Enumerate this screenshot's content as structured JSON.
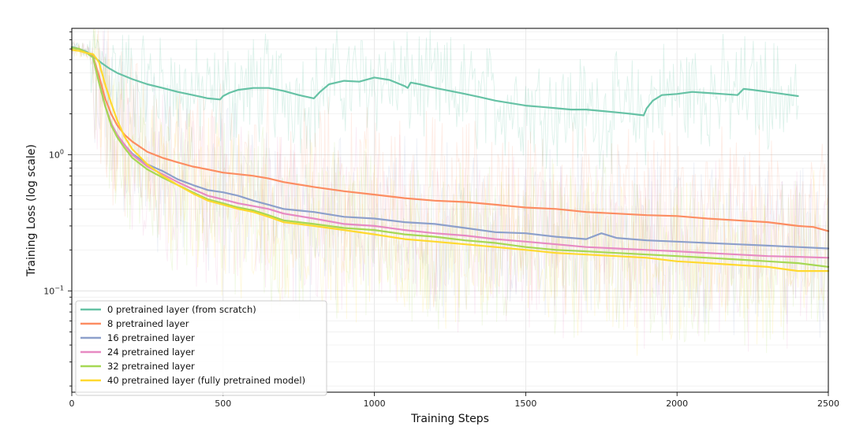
{
  "chart_data": {
    "type": "line",
    "title": "",
    "xlabel": "Training Steps",
    "ylabel": "Training Loss (log scale)",
    "x_scale": "linear",
    "y_scale": "log",
    "xlim": [
      0,
      2500
    ],
    "ylim": [
      0.018,
      8.5
    ],
    "x_ticks": [
      0,
      500,
      1000,
      1500,
      2000,
      2500
    ],
    "x_tick_labels": [
      "0",
      "500",
      "1000",
      "1500",
      "2000",
      "2500"
    ],
    "y_ticks": [
      1,
      0.1
    ],
    "y_tick_labels": [
      "10^0",
      "10^−1"
    ],
    "grid": true,
    "legend_position": "lower-left",
    "series": [
      {
        "name": "0 pretrained layer (from scratch)",
        "color": "#66c2a5",
        "x": [
          0,
          25,
          50,
          75,
          100,
          125,
          150,
          200,
          250,
          300,
          350,
          400,
          450,
          490,
          500,
          520,
          550,
          600,
          650,
          700,
          750,
          800,
          820,
          850,
          900,
          950,
          1000,
          1050,
          1100,
          1110,
          1120,
          1150,
          1200,
          1250,
          1300,
          1350,
          1400,
          1450,
          1500,
          1550,
          1600,
          1650,
          1700,
          1750,
          1800,
          1850,
          1890,
          1900,
          1920,
          1950,
          2000,
          2050,
          2100,
          2150,
          2200,
          2220,
          2250,
          2300,
          2350,
          2400
        ],
        "y": [
          6.2,
          6.0,
          5.7,
          5.2,
          4.7,
          4.3,
          4.0,
          3.6,
          3.3,
          3.1,
          2.9,
          2.75,
          2.6,
          2.55,
          2.7,
          2.85,
          3.0,
          3.1,
          3.1,
          2.95,
          2.75,
          2.6,
          2.9,
          3.3,
          3.5,
          3.45,
          3.7,
          3.55,
          3.2,
          3.1,
          3.4,
          3.3,
          3.1,
          2.95,
          2.8,
          2.65,
          2.5,
          2.4,
          2.3,
          2.25,
          2.2,
          2.15,
          2.15,
          2.1,
          2.05,
          2.0,
          1.95,
          2.2,
          2.5,
          2.75,
          2.8,
          2.9,
          2.85,
          2.8,
          2.75,
          3.05,
          3.0,
          2.9,
          2.8,
          2.7
        ]
      },
      {
        "name": "8 pretrained layer",
        "color": "#fc8d62",
        "x": [
          0,
          25,
          50,
          70,
          90,
          110,
          130,
          150,
          175,
          200,
          250,
          300,
          350,
          400,
          450,
          500,
          550,
          600,
          650,
          700,
          800,
          900,
          1000,
          1100,
          1200,
          1300,
          1400,
          1500,
          1600,
          1700,
          1800,
          1900,
          2000,
          2100,
          2200,
          2300,
          2400,
          2450,
          2500
        ],
        "y": [
          6.1,
          6.0,
          5.6,
          5.3,
          3.8,
          2.6,
          2.0,
          1.65,
          1.4,
          1.25,
          1.05,
          0.95,
          0.88,
          0.82,
          0.78,
          0.74,
          0.72,
          0.7,
          0.67,
          0.63,
          0.58,
          0.54,
          0.51,
          0.48,
          0.46,
          0.45,
          0.43,
          0.41,
          0.4,
          0.38,
          0.37,
          0.36,
          0.355,
          0.34,
          0.33,
          0.32,
          0.3,
          0.295,
          0.275
        ]
      },
      {
        "name": "16 pretrained layer",
        "color": "#8da0cb",
        "x": [
          0,
          25,
          50,
          70,
          90,
          110,
          130,
          150,
          175,
          200,
          250,
          300,
          350,
          400,
          450,
          500,
          550,
          600,
          650,
          700,
          800,
          900,
          1000,
          1100,
          1200,
          1300,
          1400,
          1500,
          1600,
          1700,
          1750,
          1800,
          1900,
          2000,
          2100,
          2200,
          2300,
          2400,
          2500
        ],
        "y": [
          6.1,
          6.0,
          5.6,
          5.2,
          3.4,
          2.3,
          1.7,
          1.4,
          1.18,
          1.02,
          0.85,
          0.76,
          0.66,
          0.6,
          0.55,
          0.53,
          0.5,
          0.46,
          0.43,
          0.4,
          0.38,
          0.35,
          0.34,
          0.32,
          0.31,
          0.29,
          0.27,
          0.265,
          0.25,
          0.24,
          0.265,
          0.245,
          0.235,
          0.23,
          0.225,
          0.22,
          0.215,
          0.21,
          0.205
        ]
      },
      {
        "name": "24 pretrained layer",
        "color": "#e78ac3",
        "x": [
          0,
          25,
          50,
          70,
          90,
          110,
          130,
          150,
          175,
          200,
          250,
          300,
          350,
          400,
          450,
          500,
          550,
          600,
          650,
          700,
          800,
          900,
          1000,
          1100,
          1200,
          1300,
          1400,
          1500,
          1600,
          1700,
          1800,
          1900,
          2000,
          2100,
          2200,
          2300,
          2400,
          2500
        ],
        "y": [
          6.1,
          6.0,
          5.6,
          5.2,
          3.4,
          2.3,
          1.7,
          1.4,
          1.18,
          1.0,
          0.82,
          0.72,
          0.63,
          0.56,
          0.5,
          0.47,
          0.44,
          0.42,
          0.4,
          0.37,
          0.34,
          0.31,
          0.3,
          0.28,
          0.265,
          0.255,
          0.24,
          0.23,
          0.22,
          0.21,
          0.205,
          0.2,
          0.195,
          0.19,
          0.185,
          0.18,
          0.178,
          0.175
        ]
      },
      {
        "name": "32 pretrained layer",
        "color": "#a6d854",
        "x": [
          0,
          25,
          50,
          70,
          90,
          110,
          130,
          150,
          175,
          200,
          250,
          300,
          350,
          400,
          450,
          500,
          550,
          600,
          650,
          700,
          800,
          900,
          1000,
          1100,
          1200,
          1300,
          1400,
          1500,
          1600,
          1700,
          1800,
          1900,
          2000,
          2100,
          2200,
          2300,
          2400,
          2500
        ],
        "y": [
          6.1,
          6.0,
          5.6,
          5.2,
          3.4,
          2.3,
          1.65,
          1.35,
          1.12,
          0.95,
          0.78,
          0.68,
          0.6,
          0.53,
          0.47,
          0.44,
          0.41,
          0.39,
          0.36,
          0.33,
          0.31,
          0.29,
          0.28,
          0.26,
          0.25,
          0.235,
          0.225,
          0.21,
          0.2,
          0.195,
          0.19,
          0.185,
          0.18,
          0.175,
          0.17,
          0.165,
          0.16,
          0.15
        ]
      },
      {
        "name": "40 pretrained layer (fully pretrained model)",
        "color": "#ffd92f",
        "x": [
          0,
          25,
          50,
          70,
          90,
          110,
          130,
          150,
          175,
          200,
          250,
          300,
          350,
          400,
          450,
          500,
          550,
          600,
          650,
          700,
          800,
          900,
          1000,
          1100,
          1200,
          1300,
          1400,
          1500,
          1600,
          1700,
          1800,
          1900,
          2000,
          2100,
          2200,
          2300,
          2400,
          2500
        ],
        "y": [
          5.9,
          5.8,
          5.6,
          5.5,
          4.8,
          3.3,
          2.4,
          1.8,
          1.35,
          1.1,
          0.85,
          0.7,
          0.6,
          0.52,
          0.46,
          0.43,
          0.4,
          0.38,
          0.35,
          0.32,
          0.3,
          0.28,
          0.26,
          0.24,
          0.23,
          0.22,
          0.21,
          0.2,
          0.19,
          0.185,
          0.18,
          0.175,
          0.165,
          0.16,
          0.155,
          0.15,
          0.14,
          0.14
        ]
      }
    ]
  }
}
